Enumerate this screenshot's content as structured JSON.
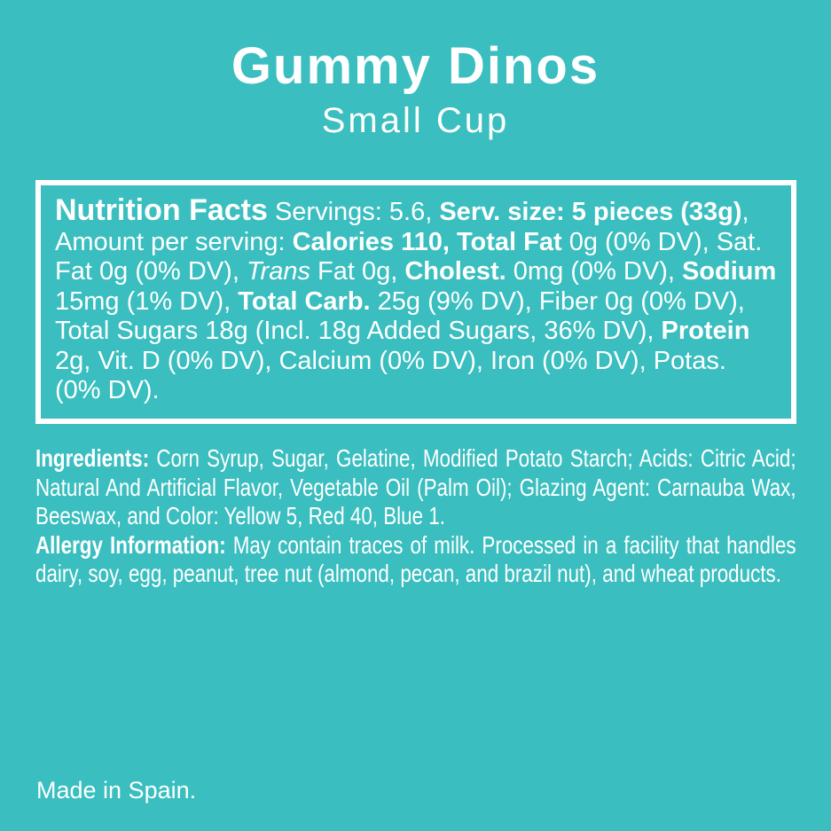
{
  "theme": {
    "background": "#3ABEBF",
    "text": "#FFFFFF",
    "box_border": "#FFFFFF"
  },
  "header": {
    "title": "Gummy Dinos",
    "subtitle": "Small Cup"
  },
  "nutrition_box": {
    "segments": [
      {
        "style": "heading",
        "text": "Nutrition Facts"
      },
      {
        "style": "regular",
        "text": " Servings: 5.6, "
      },
      {
        "style": "bold",
        "text": "Serv. size: 5 pieces (33g)"
      },
      {
        "style": "regular",
        "text": ", Amount per serving: "
      },
      {
        "style": "bold",
        "text": "Calories 110, Total Fat"
      },
      {
        "style": "regular",
        "text": " 0g (0% DV), Sat. Fat 0g (0% DV), "
      },
      {
        "style": "italic",
        "text": "Trans"
      },
      {
        "style": "regular",
        "text": " Fat 0g, "
      },
      {
        "style": "bold",
        "text": "Cholest."
      },
      {
        "style": "regular",
        "text": " 0mg (0% DV), "
      },
      {
        "style": "bold",
        "text": "Sodium"
      },
      {
        "style": "regular",
        "text": " 15mg (1% DV), "
      },
      {
        "style": "bold",
        "text": "Total Carb."
      },
      {
        "style": "regular",
        "text": " 25g (9% DV), Fiber 0g (0% DV), Total Sugars 18g (Incl. 18g Added Sugars, 36% DV), "
      },
      {
        "style": "bold",
        "text": "Protein"
      },
      {
        "style": "regular",
        "text": " 2g, Vit. D (0% DV), Calcium (0% DV), Iron (0% DV), Potas. (0% DV)."
      }
    ]
  },
  "ingredients": {
    "segments": [
      {
        "style": "bold",
        "text": "Ingredients:"
      },
      {
        "style": "regular",
        "text": " Corn Syrup, Sugar, Gelatine, Modified Potato Starch; Acids: Citric Acid; Natural And Artificial Flavor, Vegetable Oil (Palm Oil); Glazing Agent: Carnauba Wax, Beeswax, and Color: Yellow 5, Red 40, Blue 1."
      }
    ]
  },
  "allergy": {
    "segments": [
      {
        "style": "bold",
        "text": "Allergy Information:"
      },
      {
        "style": "regular",
        "text": " May contain traces of milk. Processed in a facility that handles dairy, soy, egg, peanut, tree nut (almond, pecan, and brazil nut), and wheat products."
      }
    ]
  },
  "footer": {
    "made_in": "Made in Spain."
  }
}
